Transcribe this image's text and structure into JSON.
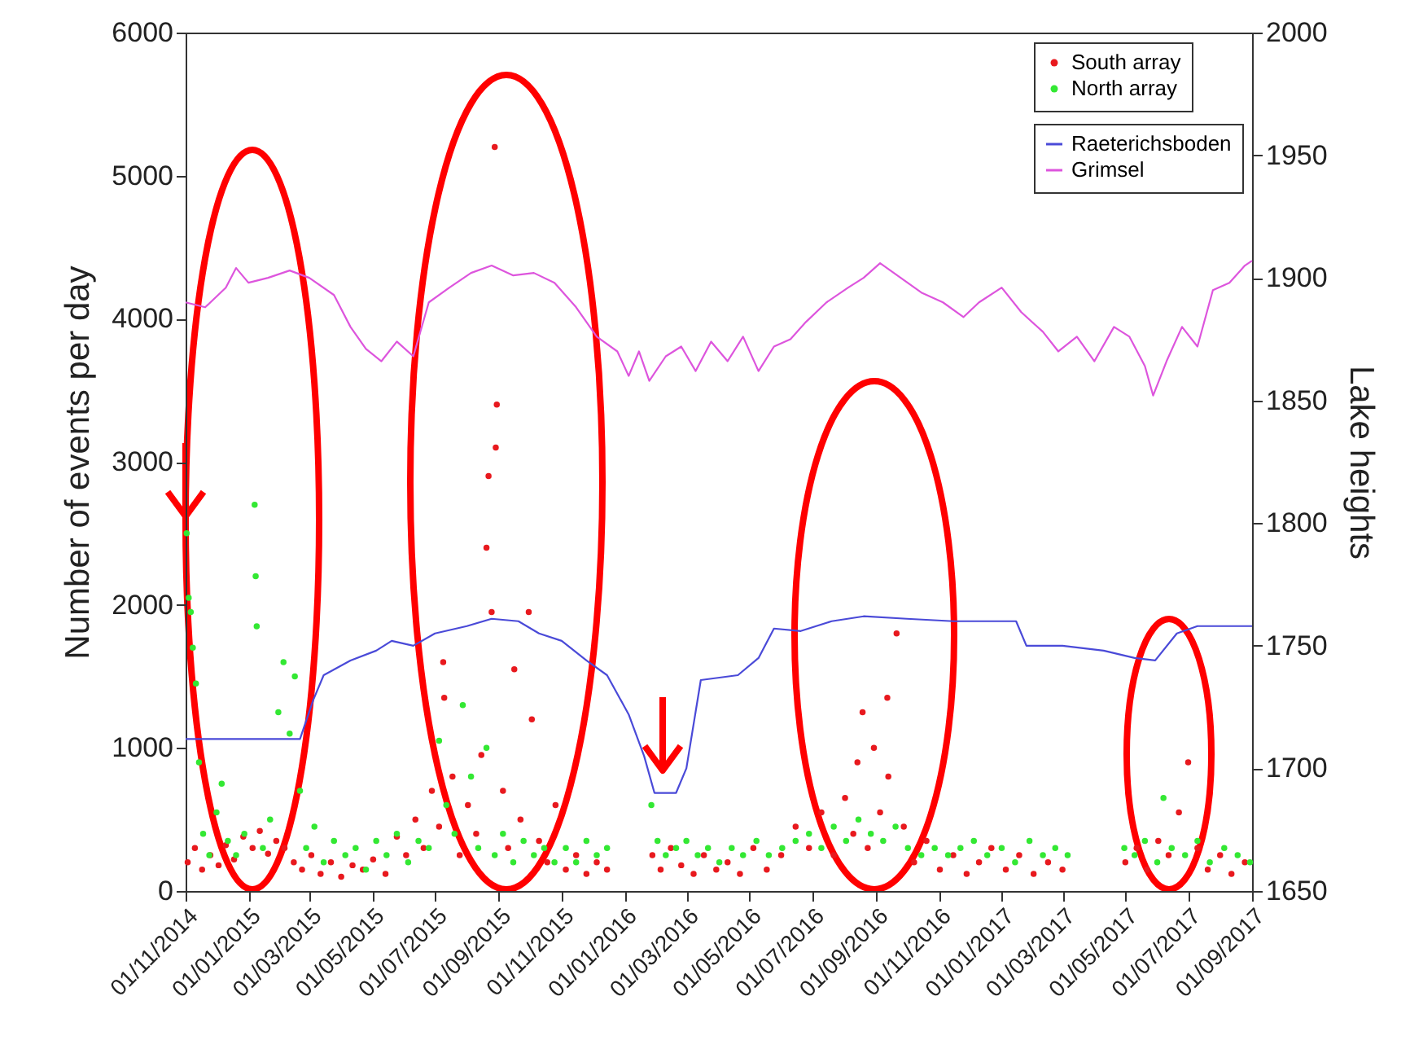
{
  "chart_data": {
    "type": "scatter",
    "ylabel": "Number of events per day",
    "y2label": "Lake heights",
    "xlim": [
      "2014-11-01",
      "2017-09-01"
    ],
    "xticks": [
      {
        "value": "2014-11-01",
        "label": "01/11/2014"
      },
      {
        "value": "2015-01-01",
        "label": "01/01/2015"
      },
      {
        "value": "2015-03-01",
        "label": "01/03/2015"
      },
      {
        "value": "2015-05-01",
        "label": "01/05/2015"
      },
      {
        "value": "2015-07-01",
        "label": "01/07/2015"
      },
      {
        "value": "2015-09-01",
        "label": "01/09/2015"
      },
      {
        "value": "2015-11-01",
        "label": "01/11/2015"
      },
      {
        "value": "2016-01-01",
        "label": "01/01/2016"
      },
      {
        "value": "2016-03-01",
        "label": "01/03/2016"
      },
      {
        "value": "2016-05-01",
        "label": "01/05/2016"
      },
      {
        "value": "2016-07-01",
        "label": "01/07/2016"
      },
      {
        "value": "2016-09-01",
        "label": "01/09/2016"
      },
      {
        "value": "2016-11-01",
        "label": "01/11/2016"
      },
      {
        "value": "2017-01-01",
        "label": "01/01/2017"
      },
      {
        "value": "2017-03-01",
        "label": "01/03/2017"
      },
      {
        "value": "2017-05-01",
        "label": "01/05/2017"
      },
      {
        "value": "2017-07-01",
        "label": "01/07/2017"
      },
      {
        "value": "2017-09-01",
        "label": "01/09/2017"
      }
    ],
    "ylim": [
      0,
      6000
    ],
    "yticks": [
      0,
      1000,
      2000,
      3000,
      4000,
      5000,
      6000
    ],
    "y2lim": [
      1650,
      2000
    ],
    "y2ticks": [
      1650,
      1700,
      1750,
      1800,
      1850,
      1900,
      1950,
      2000
    ],
    "grid": false,
    "legend": "top right",
    "series": [
      {
        "name": "South array",
        "color": "#e8191e",
        "marker": "circle",
        "x": [
          "2014-11-03",
          "2014-11-10",
          "2014-11-17",
          "2014-11-25",
          "2014-12-03",
          "2014-12-10",
          "2014-12-18",
          "2014-12-27",
          "2015-01-05",
          "2015-01-12",
          "2015-01-20",
          "2015-01-28",
          "2015-02-05",
          "2015-02-14",
          "2015-02-22",
          "2015-03-03",
          "2015-03-12",
          "2015-03-22",
          "2015-04-01",
          "2015-04-12",
          "2015-04-22",
          "2015-05-02",
          "2015-05-14",
          "2015-05-25",
          "2015-06-03",
          "2015-06-12",
          "2015-06-20",
          "2015-06-28",
          "2015-07-05",
          "2015-07-09",
          "2015-07-10",
          "2015-07-18",
          "2015-07-25",
          "2015-08-02",
          "2015-08-10",
          "2015-08-15",
          "2015-08-20",
          "2015-08-22",
          "2015-08-25",
          "2015-08-28",
          "2015-08-29",
          "2015-08-30",
          "2015-09-05",
          "2015-09-10",
          "2015-09-16",
          "2015-09-22",
          "2015-09-30",
          "2015-10-03",
          "2015-10-10",
          "2015-10-18",
          "2015-10-26",
          "2015-11-05",
          "2015-11-15",
          "2015-11-25",
          "2015-12-05",
          "2015-12-15",
          "2016-01-28",
          "2016-02-05",
          "2016-02-15",
          "2016-02-25",
          "2016-03-08",
          "2016-03-18",
          "2016-03-30",
          "2016-04-10",
          "2016-04-22",
          "2016-05-05",
          "2016-05-18",
          "2016-06-01",
          "2016-06-15",
          "2016-06-28",
          "2016-07-10",
          "2016-07-22",
          "2016-08-02",
          "2016-08-10",
          "2016-08-14",
          "2016-08-19",
          "2016-08-24",
          "2016-08-30",
          "2016-09-05",
          "2016-09-12",
          "2016-09-13",
          "2016-09-21",
          "2016-09-28",
          "2016-10-08",
          "2016-10-20",
          "2016-11-02",
          "2016-11-15",
          "2016-11-28",
          "2016-12-10",
          "2016-12-22",
          "2017-01-05",
          "2017-01-18",
          "2017-02-01",
          "2017-02-15",
          "2017-03-01",
          "2017-05-01",
          "2017-05-12",
          "2017-05-22",
          "2017-06-02",
          "2017-06-12",
          "2017-06-22",
          "2017-07-01",
          "2017-07-10",
          "2017-07-20",
          "2017-08-01",
          "2017-08-12",
          "2017-08-25"
        ],
        "values": [
          200,
          300,
          150,
          250,
          180,
          320,
          220,
          380,
          300,
          420,
          260,
          350,
          300,
          200,
          150,
          250,
          120,
          200,
          100,
          180,
          150,
          220,
          120,
          380,
          250,
          500,
          300,
          700,
          450,
          1600,
          1350,
          800,
          250,
          600,
          400,
          950,
          2400,
          2900,
          1950,
          5200,
          3100,
          3400,
          700,
          300,
          1550,
          500,
          1950,
          1200,
          350,
          200,
          600,
          150,
          250,
          120,
          200,
          150,
          250,
          150,
          300,
          180,
          120,
          250,
          150,
          200,
          120,
          300,
          150,
          250,
          450,
          300,
          550,
          250,
          650,
          400,
          900,
          1250,
          300,
          1000,
          550,
          1350,
          800,
          1800,
          450,
          200,
          350,
          150,
          250,
          120,
          200,
          300,
          150,
          250,
          120,
          200,
          150,
          200,
          300,
          150,
          350,
          250,
          550,
          900,
          300,
          150,
          250,
          120,
          200
        ]
      },
      {
        "name": "North array",
        "color": "#33e833",
        "marker": "circle",
        "x": [
          "2014-11-02",
          "2014-11-04",
          "2014-11-06",
          "2014-11-08",
          "2014-11-11",
          "2014-11-14",
          "2014-11-18",
          "2014-11-24",
          "2014-12-01",
          "2014-12-06",
          "2014-12-12",
          "2014-12-20",
          "2014-12-28",
          "2015-01-07",
          "2015-01-08",
          "2015-01-09",
          "2015-01-15",
          "2015-01-22",
          "2015-01-30",
          "2015-02-04",
          "2015-02-10",
          "2015-02-15",
          "2015-02-20",
          "2015-02-26",
          "2015-03-06",
          "2015-03-15",
          "2015-03-25",
          "2015-04-05",
          "2015-04-15",
          "2015-04-25",
          "2015-05-05",
          "2015-05-15",
          "2015-05-25",
          "2015-06-05",
          "2015-06-15",
          "2015-06-25",
          "2015-07-05",
          "2015-07-12",
          "2015-07-20",
          "2015-07-28",
          "2015-08-05",
          "2015-08-12",
          "2015-08-20",
          "2015-08-28",
          "2015-09-05",
          "2015-09-15",
          "2015-09-25",
          "2015-10-05",
          "2015-10-15",
          "2015-10-25",
          "2015-11-05",
          "2015-11-15",
          "2015-11-25",
          "2015-12-05",
          "2015-12-15",
          "2016-01-27",
          "2016-02-02",
          "2016-02-10",
          "2016-02-20",
          "2016-03-01",
          "2016-03-12",
          "2016-03-22",
          "2016-04-02",
          "2016-04-14",
          "2016-04-25",
          "2016-05-08",
          "2016-05-20",
          "2016-06-02",
          "2016-06-15",
          "2016-06-28",
          "2016-07-10",
          "2016-07-22",
          "2016-08-03",
          "2016-08-15",
          "2016-08-27",
          "2016-09-08",
          "2016-09-20",
          "2016-10-02",
          "2016-10-15",
          "2016-10-28",
          "2016-11-10",
          "2016-11-22",
          "2016-12-05",
          "2016-12-18",
          "2017-01-01",
          "2017-01-14",
          "2017-01-28",
          "2017-02-10",
          "2017-02-22",
          "2017-03-06",
          "2017-04-30",
          "2017-05-10",
          "2017-05-20",
          "2017-06-01",
          "2017-06-07",
          "2017-06-15",
          "2017-06-28",
          "2017-07-10",
          "2017-07-22",
          "2017-08-05",
          "2017-08-18",
          "2017-08-30"
        ],
        "values": [
          2500,
          2050,
          1950,
          1700,
          1450,
          900,
          400,
          250,
          550,
          750,
          350,
          250,
          400,
          2700,
          2200,
          1850,
          300,
          500,
          1250,
          1600,
          1100,
          1500,
          700,
          300,
          450,
          200,
          350,
          250,
          300,
          150,
          350,
          250,
          400,
          200,
          350,
          300,
          1050,
          600,
          400,
          1300,
          800,
          300,
          1000,
          250,
          400,
          200,
          350,
          250,
          300,
          200,
          300,
          200,
          350,
          250,
          300,
          600,
          350,
          250,
          300,
          350,
          250,
          300,
          200,
          300,
          250,
          350,
          250,
          300,
          350,
          400,
          300,
          450,
          350,
          500,
          400,
          350,
          450,
          300,
          250,
          300,
          250,
          300,
          350,
          250,
          300,
          200,
          350,
          250,
          300,
          250,
          300,
          250,
          350,
          200,
          650,
          300,
          250,
          350,
          200,
          300,
          250,
          200
        ]
      },
      {
        "name": "Raeterichsboden",
        "color": "#4a4ad8",
        "type": "line",
        "axis": "y2",
        "x": [
          "2014-11-01",
          "2015-02-20",
          "2015-03-05",
          "2015-03-15",
          "2015-04-10",
          "2015-05-05",
          "2015-05-20",
          "2015-06-10",
          "2015-07-01",
          "2015-08-01",
          "2015-08-25",
          "2015-09-20",
          "2015-10-10",
          "2015-11-01",
          "2015-11-25",
          "2015-12-15",
          "2016-01-05",
          "2016-01-20",
          "2016-01-30",
          "2016-02-20",
          "2016-03-01",
          "2016-03-15",
          "2016-04-20",
          "2016-05-10",
          "2016-05-25",
          "2016-06-20",
          "2016-07-20",
          "2016-08-20",
          "2016-10-01",
          "2016-11-15",
          "2017-01-15",
          "2017-01-25",
          "2017-03-01",
          "2017-04-10",
          "2017-05-10",
          "2017-05-30",
          "2017-06-20",
          "2017-07-10",
          "2017-09-01"
        ],
        "values": [
          1712,
          1712,
          1728,
          1738,
          1744,
          1748,
          1752,
          1750,
          1755,
          1758,
          1761,
          1760,
          1755,
          1752,
          1744,
          1738,
          1722,
          1705,
          1690,
          1690,
          1700,
          1736,
          1738,
          1745,
          1757,
          1756,
          1760,
          1762,
          1761,
          1760,
          1760,
          1750,
          1750,
          1748,
          1745,
          1744,
          1755,
          1758,
          1758
        ]
      },
      {
        "name": "Grimsel",
        "color": "#dd55dd",
        "type": "line",
        "axis": "y2",
        "x": [
          "2014-11-01",
          "2014-11-20",
          "2014-12-10",
          "2014-12-20",
          "2015-01-01",
          "2015-01-20",
          "2015-02-10",
          "2015-03-01",
          "2015-03-25",
          "2015-04-10",
          "2015-04-25",
          "2015-05-10",
          "2015-05-25",
          "2015-06-10",
          "2015-06-25",
          "2015-07-15",
          "2015-08-05",
          "2015-08-25",
          "2015-09-15",
          "2015-10-05",
          "2015-10-25",
          "2015-11-15",
          "2015-12-05",
          "2015-12-25",
          "2016-01-05",
          "2016-01-15",
          "2016-01-25",
          "2016-02-10",
          "2016-02-25",
          "2016-03-10",
          "2016-03-25",
          "2016-04-10",
          "2016-04-25",
          "2016-05-10",
          "2016-05-25",
          "2016-06-10",
          "2016-06-25",
          "2016-07-15",
          "2016-08-05",
          "2016-08-20",
          "2016-09-05",
          "2016-09-25",
          "2016-10-15",
          "2016-11-05",
          "2016-11-25",
          "2016-12-10",
          "2017-01-01",
          "2017-01-20",
          "2017-02-10",
          "2017-02-25",
          "2017-03-15",
          "2017-04-01",
          "2017-04-20",
          "2017-05-05",
          "2017-05-20",
          "2017-05-28",
          "2017-06-10",
          "2017-06-25",
          "2017-07-10",
          "2017-07-25",
          "2017-08-10",
          "2017-08-25",
          "2017-09-01"
        ],
        "values": [
          1890,
          1888,
          1896,
          1904,
          1898,
          1900,
          1903,
          1900,
          1893,
          1880,
          1871,
          1866,
          1874,
          1868,
          1890,
          1896,
          1902,
          1905,
          1901,
          1902,
          1898,
          1888,
          1876,
          1870,
          1860,
          1870,
          1858,
          1868,
          1872,
          1862,
          1874,
          1866,
          1876,
          1862,
          1872,
          1875,
          1882,
          1890,
          1896,
          1900,
          1906,
          1900,
          1894,
          1890,
          1884,
          1890,
          1896,
          1886,
          1878,
          1870,
          1876,
          1866,
          1880,
          1876,
          1864,
          1852,
          1866,
          1880,
          1872,
          1895,
          1898,
          1905,
          1907
        ]
      }
    ]
  }
}
